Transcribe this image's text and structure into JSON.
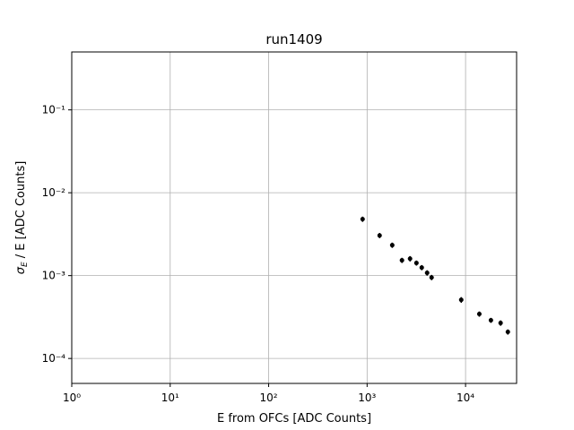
{
  "chart_data": {
    "type": "errorbar",
    "title": "run1409",
    "xlabel": "E from OFCs [ADC Counts]",
    "ylabel_symbol": "σ",
    "ylabel_subscript": "E",
    "ylabel_rest": " / E [ADC Counts]",
    "x": [
      900,
      1340,
      1800,
      2260,
      2730,
      3170,
      3590,
      4070,
      4520,
      9040,
      13800,
      18100,
      22700,
      26900
    ],
    "series": [
      {
        "color": "#000000",
        "values": [
          0.0048,
          0.00305,
          0.00233,
          0.00153,
          0.0016,
          0.00142,
          0.00125,
          0.00108,
          0.00095,
          0.00051,
          0.000344,
          0.000289,
          0.000268,
          0.000209
        ],
        "errors": [
          0.00035,
          0.00022,
          0.00017,
          0.00011,
          0.00012,
          0.0001,
          9e-05,
          8e-05,
          7e-05,
          4e-05,
          2.5e-05,
          2e-05,
          2e-05,
          1.5e-05
        ]
      }
    ],
    "xscale": "log",
    "yscale": "log",
    "xlim": [
      1,
      33000
    ],
    "ylim": [
      5e-05,
      0.5
    ],
    "xticks": [
      {
        "value": 1,
        "label": "10⁰"
      },
      {
        "value": 10,
        "label": "10¹"
      },
      {
        "value": 100,
        "label": "10²"
      },
      {
        "value": 1000,
        "label": "10³"
      },
      {
        "value": 10000,
        "label": "10⁴"
      }
    ],
    "yticks": [
      {
        "value": 0.0001,
        "label": "10⁻⁴"
      },
      {
        "value": 0.001,
        "label": "10⁻³"
      },
      {
        "value": 0.01,
        "label": "10⁻²"
      },
      {
        "value": 0.1,
        "label": "10⁻¹"
      }
    ],
    "grid": true
  }
}
